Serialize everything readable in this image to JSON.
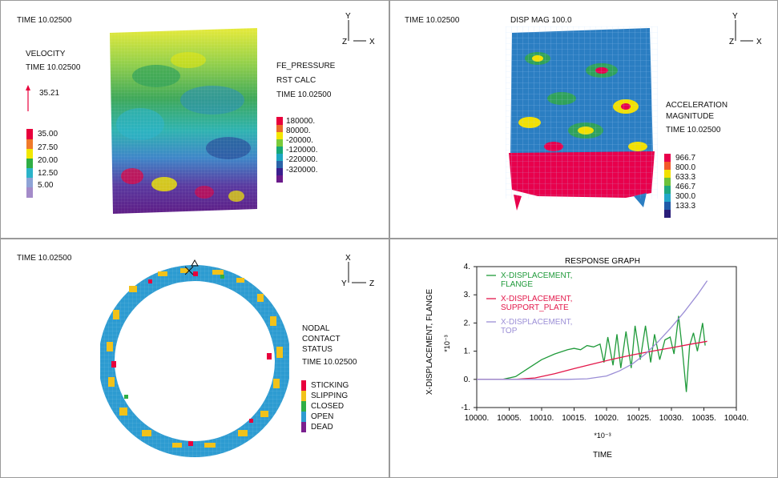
{
  "panels": {
    "top_left": {
      "time": "TIME 10.02500",
      "axes": {
        "up": "Y",
        "right": "X",
        "origin": "Z"
      },
      "velocity": {
        "title": "VELOCITY",
        "time": "TIME 10.02500",
        "vector_value": "35.21"
      },
      "velocity_legend": [
        "35.00",
        "27.50",
        "20.00",
        "12.50",
        "5.00"
      ],
      "velocity_colors": [
        "#e8003c",
        "#f07a2a",
        "#f2e800",
        "#2fae45",
        "#2bb3c9",
        "#8ea3d6",
        "#a48bc9"
      ],
      "pressure": {
        "title": "FE_PRESSURE",
        "subtitle": "RST CALC",
        "time": "TIME 10.02500"
      },
      "pressure_legend": [
        "180000.",
        "80000.",
        "-20000.",
        "-120000.",
        "-220000.",
        "-320000."
      ],
      "pressure_colors": [
        "#e8003c",
        "#e96b2a",
        "#f4e600",
        "#7acb3a",
        "#15a877",
        "#1da7c2",
        "#2a63a8",
        "#3a1f8e",
        "#6a1a8a"
      ]
    },
    "top_right": {
      "time": "TIME 10.02500",
      "title": "DISP MAG 100.0",
      "axes": {
        "up": "Y",
        "right": "X",
        "origin": "Z"
      },
      "accel": {
        "title1": "ACCELERATION",
        "title2": "MAGNITUDE",
        "time": "TIME 10.02500"
      },
      "accel_legend": [
        "966.7",
        "800.0",
        "633.3",
        "466.7",
        "300.0",
        "133.3"
      ],
      "accel_colors": [
        "#e8004c",
        "#f25a2a",
        "#f2e000",
        "#6dc23a",
        "#1ea87f",
        "#22a7c9",
        "#1f5aa8",
        "#2a1e7a"
      ]
    },
    "bottom_left": {
      "time": "TIME 10.02500",
      "axes": {
        "up": "X",
        "right": "Z",
        "origin": "Y"
      },
      "status": {
        "title1": "NODAL",
        "title2": "CONTACT",
        "title3": "STATUS",
        "time": "TIME 10.02500"
      },
      "status_legend": [
        {
          "label": "STICKING",
          "color": "#e8003c"
        },
        {
          "label": "SLIPPING",
          "color": "#f2c21a"
        },
        {
          "label": "CLOSED",
          "color": "#2fae45"
        },
        {
          "label": "OPEN",
          "color": "#2d9bd1"
        },
        {
          "label": "DEAD",
          "color": "#7a1f8e"
        }
      ]
    },
    "bottom_right": {}
  },
  "chart_data": {
    "type": "line",
    "title": "RESPONSE GRAPH",
    "xlabel": "TIME",
    "x_multiplier": "*10⁻³",
    "ylabel": "X-DISPLACEMENT, FLANGE",
    "y_multiplier": "*10⁻³",
    "xlim": [
      10000,
      10040
    ],
    "ylim": [
      -1,
      4
    ],
    "x_ticks": [
      "10000.",
      "10005.",
      "10010.",
      "10015.",
      "10020.",
      "10025.",
      "10030.",
      "10035.",
      "10040."
    ],
    "y_ticks": [
      "-1.",
      "0.",
      "1.",
      "2.",
      "3.",
      "4."
    ],
    "y_tick_values": [
      -1,
      0,
      1,
      2,
      3,
      4
    ],
    "x_tick_values": [
      10000,
      10005,
      10010,
      10015,
      10020,
      10025,
      10030,
      10035,
      10040
    ],
    "series": [
      {
        "name": "X-DISPLACEMENT, FLANGE",
        "label1": "X-DISPLACEMENT,",
        "label2": "FLANGE",
        "color": "#1f9a3a",
        "x": [
          10000,
          10004,
          10006,
          10008,
          10010,
          10012,
          10014,
          10015,
          10016,
          10017,
          10018,
          10019,
          10019.6,
          10020.2,
          10021,
          10021.6,
          10022.2,
          10023,
          10023.8,
          10024.4,
          10025.2,
          10026,
          10026.8,
          10027.4,
          10028.2,
          10029,
          10029.8,
          10030.4,
          10031.1,
          10031.7,
          10032.3,
          10032.8,
          10033.4,
          10034,
          10034.8,
          10035.2
        ],
        "y": [
          0,
          0,
          0.1,
          0.4,
          0.7,
          0.9,
          1.05,
          1.1,
          1.05,
          1.2,
          1.15,
          1.25,
          0.6,
          1.5,
          0.5,
          1.6,
          0.4,
          1.7,
          0.4,
          1.9,
          0.7,
          1.9,
          0.6,
          1.6,
          0.7,
          1.4,
          1.5,
          0.9,
          2.25,
          1.0,
          -0.45,
          1.2,
          1.65,
          1.0,
          2.0,
          1.2
        ]
      },
      {
        "name": "X-DISPLACEMENT, SUPPORT_PLATE",
        "label1": "X-DISPLACEMENT,",
        "label2": "SUPPORT_PLATE",
        "color": "#e3174a",
        "x": [
          10000,
          10006,
          10009,
          10012,
          10015,
          10018,
          10021,
          10024,
          10027,
          10030,
          10033,
          10035.5
        ],
        "y": [
          0,
          0,
          0.05,
          0.2,
          0.38,
          0.55,
          0.72,
          0.87,
          1.0,
          1.12,
          1.25,
          1.35
        ]
      },
      {
        "name": "X-DISPLACEMENT, TOP",
        "label1": "X-DISPLACEMENT,",
        "label2": "TOP",
        "color": "#9b8ed6",
        "x": [
          10000,
          10010,
          10014,
          10017,
          10020,
          10022,
          10024,
          10026,
          10028,
          10030,
          10032,
          10034,
          10035.5
        ],
        "y": [
          0,
          0,
          0,
          0.02,
          0.12,
          0.3,
          0.55,
          0.9,
          1.35,
          1.85,
          2.4,
          3.0,
          3.5
        ]
      }
    ]
  }
}
